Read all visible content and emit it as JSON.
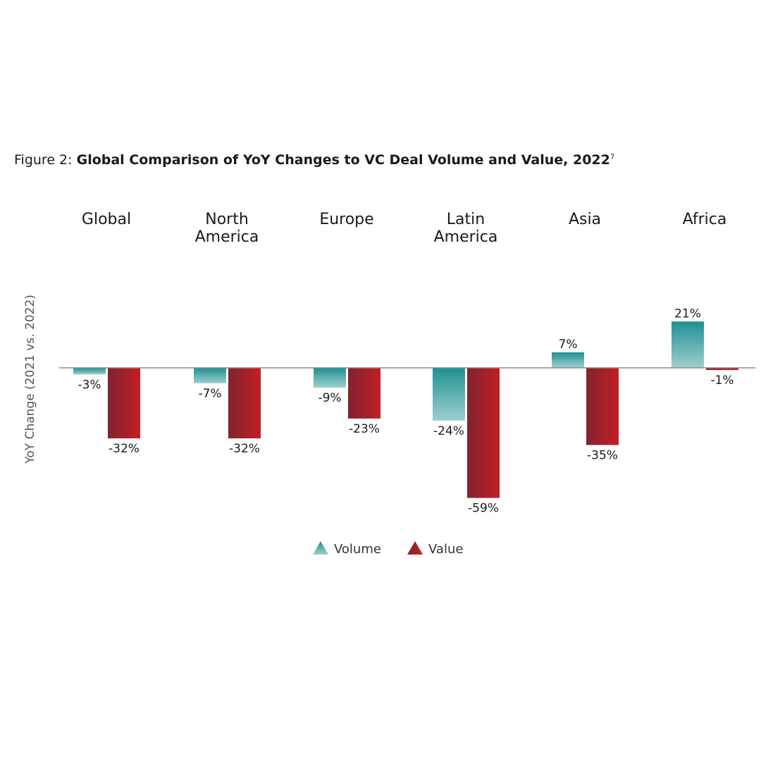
{
  "figure": {
    "prefix": "Figure 2: ",
    "title": "Global Comparison of YoY Changes to VC Deal Volume and Value, 2022",
    "footnote": "7"
  },
  "colors": {
    "volume": "#1f9090",
    "volume_light": "#9fcfd0",
    "value": "#c41e24",
    "value_dark": "#7f2430",
    "baseline": "#8c8c8c"
  },
  "chart_data": {
    "type": "bar",
    "categories": [
      [
        "Global"
      ],
      [
        "North",
        "America"
      ],
      [
        "Europe"
      ],
      [
        "Latin",
        "America"
      ],
      [
        "Asia"
      ],
      [
        "Africa"
      ]
    ],
    "series": [
      {
        "name": "Volume",
        "values": [
          -3,
          -7,
          -9,
          -24,
          7,
          21
        ],
        "labels": [
          "-3%",
          "-7%",
          "-9%",
          "-24%",
          "7%",
          "21%"
        ]
      },
      {
        "name": "Value",
        "values": [
          -32,
          -32,
          -23,
          -59,
          -35,
          -1
        ],
        "labels": [
          "-32%",
          "-32%",
          "-23%",
          "-59%",
          "-35%",
          "-1%"
        ]
      }
    ],
    "ylabel": "YoY Change (2021 vs. 2022)",
    "legend_position": "bottom-center",
    "grid": false
  }
}
